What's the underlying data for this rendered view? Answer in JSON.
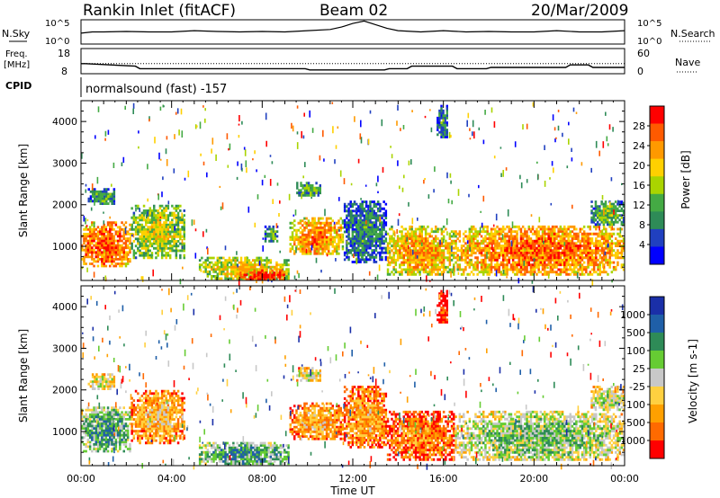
{
  "header": {
    "station": "Rankin Inlet (fitACF)",
    "beam": "Beam 02",
    "date": "20/Mar/2009"
  },
  "strip_labels": {
    "nsky": "N.Sky",
    "nsearch": "N.Search",
    "freq_line1": "Freq.",
    "freq_line2": "[MHz]",
    "nave": "Nave",
    "cpid": "CPID",
    "cpid_value": "normalsound (fast) -157"
  },
  "chart_data": [
    {
      "type": "line",
      "panel": "noise",
      "left_ticks": [
        "10^5",
        "10^0"
      ],
      "right_ticks": [
        "10^5",
        "10^0"
      ],
      "series": [
        {
          "name": "N.Sky",
          "x": [
            0,
            0.5,
            1,
            2,
            3,
            4,
            5,
            6,
            7,
            8,
            9,
            10,
            11,
            11.5,
            12,
            12.5,
            13,
            13.5,
            14,
            15,
            16,
            17,
            18,
            19,
            20,
            21,
            22,
            23,
            24
          ],
          "y": [
            0.45,
            0.5,
            0.5,
            0.52,
            0.5,
            0.5,
            0.55,
            0.52,
            0.5,
            0.52,
            0.5,
            0.55,
            0.6,
            0.7,
            0.85,
            0.95,
            0.8,
            0.65,
            0.55,
            0.5,
            0.55,
            0.5,
            0.52,
            0.5,
            0.5,
            0.55,
            0.5,
            0.5,
            0.55
          ]
        }
      ]
    },
    {
      "type": "line",
      "panel": "frequency",
      "left_ticks": [
        "18",
        "8"
      ],
      "right_ticks": [
        "60",
        "0"
      ],
      "series": [
        {
          "name": "Freq.",
          "x": [
            0,
            0.2,
            2.4,
            2.6,
            9.9,
            10.1,
            13.4,
            13.6,
            14.4,
            14.6,
            16.4,
            16.6,
            17.9,
            18.1,
            21.4,
            21.6,
            22.4,
            22.6,
            24
          ],
          "y": [
            12,
            12,
            11,
            10,
            10,
            9.5,
            9.5,
            10,
            10,
            11,
            11,
            10,
            10,
            10.5,
            10.5,
            11.5,
            11.5,
            10.5,
            10.5
          ]
        }
      ],
      "dotted_level": 12
    },
    {
      "type": "heatmap",
      "panel": "power",
      "ylabel": "Slant Range [km]",
      "xlim": [
        0,
        24
      ],
      "ylim": [
        180,
        4500
      ],
      "yticks": [
        1000,
        2000,
        3000,
        4000
      ],
      "colorbar": {
        "label": "Power [dB]",
        "ticks": [
          "28",
          "24",
          "20",
          "16",
          "12",
          "8",
          "4"
        ]
      },
      "echo_regions": [
        {
          "t0": 0.0,
          "t1": 2.2,
          "r0": 500,
          "r1": 1600,
          "level": 0.85
        },
        {
          "t0": 2.2,
          "t1": 4.6,
          "r0": 700,
          "r1": 2000,
          "level": 0.55
        },
        {
          "t0": 0.3,
          "t1": 1.5,
          "r0": 2000,
          "r1": 2400,
          "level": 0.35
        },
        {
          "t0": 5.2,
          "t1": 9.2,
          "r0": 200,
          "r1": 750,
          "level": 0.6
        },
        {
          "t0": 7.0,
          "t1": 9.0,
          "r0": 180,
          "r1": 450,
          "level": 0.95
        },
        {
          "t0": 8.1,
          "t1": 8.7,
          "r0": 1100,
          "r1": 1500,
          "level": 0.4
        },
        {
          "t0": 9.2,
          "t1": 11.6,
          "r0": 800,
          "r1": 1700,
          "level": 0.75
        },
        {
          "t0": 9.5,
          "t1": 10.6,
          "r0": 2200,
          "r1": 2550,
          "level": 0.4
        },
        {
          "t0": 11.6,
          "t1": 13.5,
          "r0": 600,
          "r1": 2100,
          "level": 0.3
        },
        {
          "t0": 13.5,
          "t1": 16.5,
          "r0": 300,
          "r1": 1500,
          "level": 0.7
        },
        {
          "t0": 16.5,
          "t1": 24.0,
          "r0": 300,
          "r1": 1500,
          "level": 0.8
        },
        {
          "t0": 15.7,
          "t1": 16.2,
          "r0": 3600,
          "r1": 4400,
          "level": 0.3
        },
        {
          "t0": 22.5,
          "t1": 24.0,
          "r0": 1500,
          "r1": 2100,
          "level": 0.4
        }
      ]
    },
    {
      "type": "heatmap",
      "panel": "velocity",
      "xlabel": "Time UT",
      "ylabel": "Slant Range [km]",
      "xlim": [
        0,
        24
      ],
      "ylim": [
        180,
        4500
      ],
      "xticks": [
        "00:00",
        "04:00",
        "08:00",
        "12:00",
        "16:00",
        "20:00",
        "00:00"
      ],
      "yticks": [
        1000,
        2000,
        3000,
        4000
      ],
      "colorbar": {
        "label": "Velocity [m s-1]",
        "ticks": [
          "1000",
          "500",
          "100",
          "25",
          "-25",
          "-100",
          "-500",
          "-1000"
        ]
      },
      "echo_regions": [
        {
          "t0": 0.0,
          "t1": 2.2,
          "r0": 500,
          "r1": 1600,
          "level": 0.7
        },
        {
          "t0": 2.2,
          "t1": 4.6,
          "r0": 700,
          "r1": 2000,
          "level": 0.35
        },
        {
          "t0": 0.3,
          "t1": 1.5,
          "r0": 2000,
          "r1": 2400,
          "level": 0.5
        },
        {
          "t0": 5.2,
          "t1": 9.2,
          "r0": 200,
          "r1": 750,
          "level": 0.72
        },
        {
          "t0": 9.2,
          "t1": 11.6,
          "r0": 800,
          "r1": 1700,
          "level": 0.33
        },
        {
          "t0": 9.5,
          "t1": 10.6,
          "r0": 2200,
          "r1": 2550,
          "level": 0.5
        },
        {
          "t0": 11.6,
          "t1": 13.5,
          "r0": 600,
          "r1": 2100,
          "level": 0.3
        },
        {
          "t0": 13.5,
          "t1": 16.5,
          "r0": 300,
          "r1": 1500,
          "level": 0.25
        },
        {
          "t0": 16.5,
          "t1": 24.0,
          "r0": 300,
          "r1": 1500,
          "level": 0.6
        },
        {
          "t0": 15.7,
          "t1": 16.2,
          "r0": 3600,
          "r1": 4400,
          "level": 0.1
        },
        {
          "t0": 22.5,
          "t1": 24.0,
          "r0": 1500,
          "r1": 2100,
          "level": 0.55
        }
      ]
    }
  ],
  "colors": {
    "power_scale": [
      "#0000ff",
      "#2040c0",
      "#2e8b57",
      "#44aa44",
      "#aad400",
      "#ffd000",
      "#ff9900",
      "#ff5a00",
      "#ff0000"
    ],
    "velocity_scale": [
      "#ff0000",
      "#ff6a00",
      "#ffa000",
      "#ffd040",
      "#c8c8c8",
      "#66cc33",
      "#2e8b57",
      "#1f5fa8",
      "#1a2fa8"
    ],
    "axis": "#000000",
    "background": "#ffffff"
  }
}
